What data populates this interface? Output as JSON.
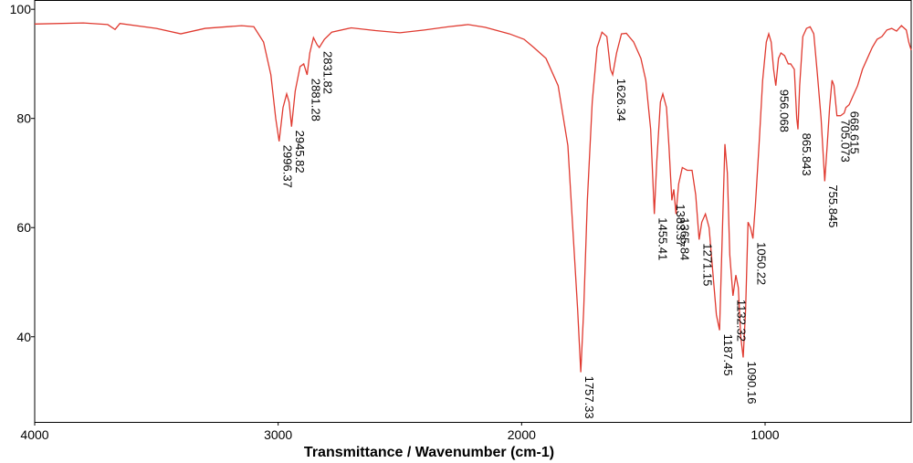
{
  "chart_data": {
    "type": "line",
    "xlabel": "Transmittance / Wavenumber (cm-1)",
    "xlim": [
      4000,
      400
    ],
    "ylim": [
      24.4,
      101.7
    ],
    "xticks": [
      4000,
      3000,
      2000,
      1000
    ],
    "yticks": [
      40,
      60,
      80,
      100
    ],
    "grid": false,
    "series": [
      {
        "name": null,
        "color": "#e03a30",
        "x": [
          4000,
          3800,
          3700,
          3670,
          3650,
          3500,
          3400,
          3300,
          3150,
          3100,
          3060,
          3030,
          3010,
          2996,
          2980,
          2965,
          2955,
          2945,
          2930,
          2910,
          2895,
          2881,
          2870,
          2855,
          2840,
          2831,
          2810,
          2780,
          2700,
          2600,
          2500,
          2400,
          2300,
          2220,
          2150,
          2050,
          1990,
          1950,
          1900,
          1850,
          1810,
          1790,
          1770,
          1757,
          1745,
          1730,
          1710,
          1690,
          1670,
          1650,
          1635,
          1626,
          1610,
          1590,
          1570,
          1540,
          1510,
          1490,
          1470,
          1455,
          1445,
          1430,
          1420,
          1405,
          1395,
          1383,
          1375,
          1366,
          1355,
          1340,
          1320,
          1300,
          1285,
          1271,
          1260,
          1245,
          1230,
          1215,
          1200,
          1187,
          1175,
          1165,
          1155,
          1145,
          1132,
          1120,
          1110,
          1100,
          1090,
          1080,
          1070,
          1060,
          1050,
          1040,
          1025,
          1010,
          995,
          985,
          975,
          965,
          956,
          945,
          935,
          920,
          905,
          895,
          880,
          870,
          865,
          858,
          845,
          830,
          815,
          800,
          785,
          770,
          755,
          745,
          735,
          725,
          717,
          705,
          690,
          675,
          668,
          655,
          640,
          620,
          600,
          580,
          560,
          540,
          520,
          500,
          480,
          460,
          440,
          420,
          410,
          400
        ],
        "values": [
          97.3,
          97.5,
          97.2,
          96.3,
          97.4,
          96.5,
          95.5,
          96.5,
          97.0,
          96.8,
          94,
          88,
          80,
          75.8,
          82,
          84.5,
          83,
          78.5,
          85,
          89.5,
          90,
          88,
          92,
          94.8,
          93.5,
          93,
          94.5,
          95.8,
          96.6,
          96.1,
          95.7,
          96.2,
          96.8,
          97.2,
          96.7,
          95.5,
          94.5,
          93,
          91,
          86,
          75,
          60,
          45,
          33.5,
          45,
          65,
          83,
          93,
          95.8,
          95,
          89,
          88,
          92,
          95.5,
          95.6,
          94,
          91,
          87,
          78,
          62.5,
          72,
          83,
          84.5,
          82,
          75,
          65,
          67,
          62.5,
          68,
          71,
          70.5,
          70.5,
          66,
          57.8,
          61,
          62.5,
          60,
          52,
          44,
          41.2,
          60,
          75.3,
          70,
          55,
          47.5,
          51.3,
          49,
          40,
          36.2,
          45,
          61,
          60,
          58,
          64,
          75,
          87,
          94,
          95.5,
          94,
          89,
          86,
          91,
          92,
          91.5,
          90,
          90,
          89,
          80,
          78,
          86,
          95,
          96.5,
          96.8,
          95.5,
          88,
          80,
          68.5,
          75,
          82,
          87,
          86,
          80.5,
          80.5,
          81,
          82,
          82.5,
          84,
          86,
          89,
          91,
          93,
          94.5,
          95,
          96.2,
          96.5,
          96,
          97,
          96.2,
          94,
          92.5
        ]
      }
    ],
    "annotations": [
      {
        "label": "2996.37",
        "x": 2996.37,
        "y": 75.8
      },
      {
        "label": "2945.82",
        "x": 2945.82,
        "y": 78.5
      },
      {
        "label": "2881.28",
        "x": 2881.28,
        "y": 88
      },
      {
        "label": "2831.82",
        "x": 2831.82,
        "y": 93
      },
      {
        "label": "1757.33",
        "x": 1757.33,
        "y": 33.5
      },
      {
        "label": "1626.34",
        "x": 1626.34,
        "y": 88
      },
      {
        "label": "1455.41",
        "x": 1455.41,
        "y": 62.5
      },
      {
        "label": "1383.37",
        "x": 1383.37,
        "y": 65
      },
      {
        "label": "1365.84",
        "x": 1365.84,
        "y": 62.5
      },
      {
        "label": "1271.15",
        "x": 1271.15,
        "y": 57.8
      },
      {
        "label": "1187.45",
        "x": 1187.45,
        "y": 41.2
      },
      {
        "label": "1132.32",
        "x": 1132.32,
        "y": 47.5
      },
      {
        "label": "1090.16",
        "x": 1090.16,
        "y": 36.2
      },
      {
        "label": "1050.22",
        "x": 1050.22,
        "y": 58
      },
      {
        "label": "956.068",
        "x": 956.068,
        "y": 86
      },
      {
        "label": "865.843",
        "x": 865.843,
        "y": 78
      },
      {
        "label": "755.845",
        "x": 755.845,
        "y": 68.5
      },
      {
        "label": "705.073",
        "x": 705.073,
        "y": 80.5
      },
      {
        "label": "668.615",
        "x": 668.615,
        "y": 82
      }
    ]
  }
}
